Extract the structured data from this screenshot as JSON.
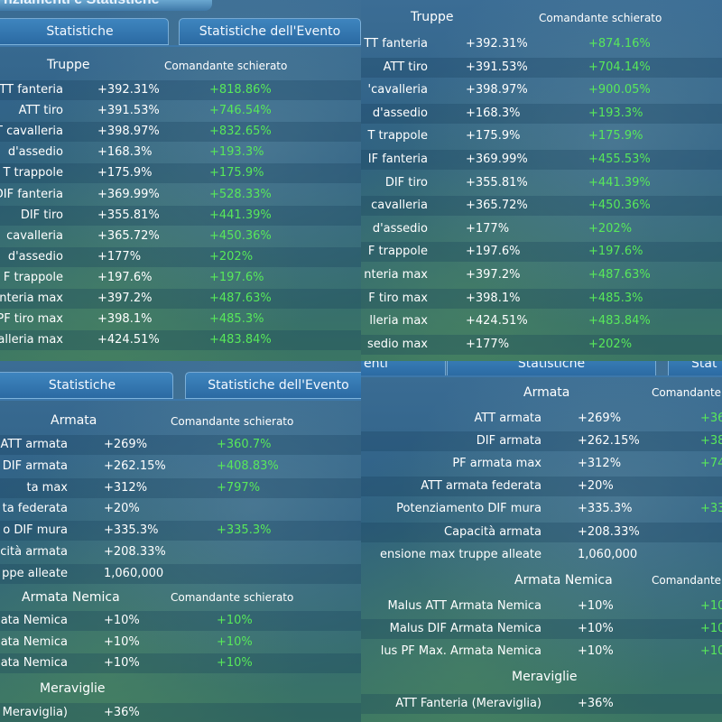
{
  "q1": {
    "title_fragment": "nziamenti e Statistiche",
    "tab_statistiche": "Statistiche",
    "tab_evento": "Statistiche dell'Evento",
    "header": "Truppe",
    "cmd_header": "Comandante schierato",
    "rows": [
      {
        "label": "TT fanteria",
        "base": "+392.31%",
        "cmd": "+818.86%"
      },
      {
        "label": "ATT tiro",
        "base": "+391.53%",
        "cmd": "+746.54%"
      },
      {
        "label": "T cavalleria",
        "base": "+398.97%",
        "cmd": "+832.65%"
      },
      {
        "label": "d'assedio",
        "base": "+168.3%",
        "cmd": "+193.3%"
      },
      {
        "label": "T trappole",
        "base": "+175.9%",
        "cmd": "+175.9%"
      },
      {
        "label": "DIF fanteria",
        "base": "+369.99%",
        "cmd": "+528.33%"
      },
      {
        "label": "DIF tiro",
        "base": "+355.81%",
        "cmd": "+441.39%"
      },
      {
        "label": "cavalleria",
        "base": "+365.72%",
        "cmd": "+450.36%"
      },
      {
        "label": "d'assedio",
        "base": "+177%",
        "cmd": "+202%"
      },
      {
        "label": "F trappole",
        "base": "+197.6%",
        "cmd": "+197.6%"
      },
      {
        "label": "nteria max",
        "base": "+397.2%",
        "cmd": "+487.63%"
      },
      {
        "label": "PF tiro max",
        "base": "+398.1%",
        "cmd": "+485.3%"
      },
      {
        "label": "alleria max",
        "base": "+424.51%",
        "cmd": "+483.84%"
      }
    ]
  },
  "q2": {
    "header": "Truppe",
    "cmd_header": "Comandante schierato",
    "rows": [
      {
        "label": "TT fanteria",
        "base": "+392.31%",
        "cmd": "+874.16%"
      },
      {
        "label": "ATT tiro",
        "base": "+391.53%",
        "cmd": "+704.14%"
      },
      {
        "label": "'cavalleria",
        "base": "+398.97%",
        "cmd": "+900.05%"
      },
      {
        "label": "d'assedio",
        "base": "+168.3%",
        "cmd": "+193.3%"
      },
      {
        "label": "T trappole",
        "base": "+175.9%",
        "cmd": "+175.9%"
      },
      {
        "label": "IF fanteria",
        "base": "+369.99%",
        "cmd": "+455.53%"
      },
      {
        "label": "DIF tiro",
        "base": "+355.81%",
        "cmd": "+441.39%"
      },
      {
        "label": "cavalleria",
        "base": "+365.72%",
        "cmd": "+450.36%"
      },
      {
        "label": "d'assedio",
        "base": "+177%",
        "cmd": "+202%"
      },
      {
        "label": "F trappole",
        "base": "+197.6%",
        "cmd": "+197.6%"
      },
      {
        "label": "nteria max",
        "base": "+397.2%",
        "cmd": "+487.63%"
      },
      {
        "label": "F tiro max",
        "base": "+398.1%",
        "cmd": "+485.3%"
      },
      {
        "label": "lleria max",
        "base": "+424.51%",
        "cmd": "+483.84%"
      },
      {
        "label": "sedio max",
        "base": "+177%",
        "cmd": "+202%"
      }
    ]
  },
  "q3": {
    "tab_statistiche": "Statistiche",
    "tab_evento": "Statistiche dell'Evento",
    "armata_header": "Armata",
    "armata_cmd_header": "Comandante schierato",
    "armata_rows": [
      {
        "label": "ATT armata",
        "base": "+269%",
        "cmd": "+360.7%"
      },
      {
        "label": "DIF armata",
        "base": "+262.15%",
        "cmd": "+408.83%"
      },
      {
        "label": "ta max",
        "base": "+312%",
        "cmd": "+797%"
      },
      {
        "label": "ta federata",
        "base": "+20%",
        "cmd": ""
      },
      {
        "label": "o DIF mura",
        "base": "+335.3%",
        "cmd": "+335.3%"
      },
      {
        "label": "cità armata",
        "base": "+208.33%",
        "cmd": ""
      },
      {
        "label": "ppe alleate",
        "base": "1,060,000",
        "cmd": ""
      }
    ],
    "nemica_header": "Armata Nemica",
    "nemica_cmd_header": "Comandante schierato",
    "nemica_rows": [
      {
        "label": "ata Nemica",
        "base": "+10%",
        "cmd": "+10%"
      },
      {
        "label": "ata Nemica",
        "base": "+10%",
        "cmd": "+10%"
      },
      {
        "label": "ata Nemica",
        "base": "+10%",
        "cmd": "+10%"
      }
    ],
    "meraviglie_header": "Meraviglie",
    "meraviglie_rows": [
      {
        "label": "Meraviglia)",
        "base": "+36%",
        "cmd": ""
      }
    ]
  },
  "q4": {
    "tab_left_fragment": "enti",
    "tab_statistiche": "Statistiche",
    "tab_right_fragment": "Stat",
    "armata_header": "Armata",
    "armata_cmd_header": "Comandante",
    "armata_rows": [
      {
        "label": "ATT armata",
        "base": "+269%",
        "cmd": "+36"
      },
      {
        "label": "DIF armata",
        "base": "+262.15%",
        "cmd": "+38"
      },
      {
        "label": "PF armata max",
        "base": "+312%",
        "cmd": "+74"
      },
      {
        "label": "ATT armata federata",
        "base": "+20%",
        "cmd": ""
      },
      {
        "label": "Potenziamento DIF mura",
        "base": "+335.3%",
        "cmd": "+33"
      },
      {
        "label": "Capacità armata",
        "base": "+208.33%",
        "cmd": ""
      },
      {
        "label": "ensione max truppe alleate",
        "base": "1,060,000",
        "cmd": ""
      }
    ],
    "nemica_header": "Armata Nemica",
    "nemica_cmd_header": "Comandante",
    "nemica_rows": [
      {
        "label": "Malus ATT Armata Nemica",
        "base": "+10%",
        "cmd": "+10"
      },
      {
        "label": "Malus DIF Armata Nemica",
        "base": "+10%",
        "cmd": "+10"
      },
      {
        "label": "lus PF Max. Armata Nemica",
        "base": "+10%",
        "cmd": "+10"
      }
    ],
    "meraviglie_header": "Meraviglie",
    "meraviglie_rows": [
      {
        "label": "ATT Fanteria (Meraviglia)",
        "base": "+36%",
        "cmd": ""
      }
    ]
  }
}
